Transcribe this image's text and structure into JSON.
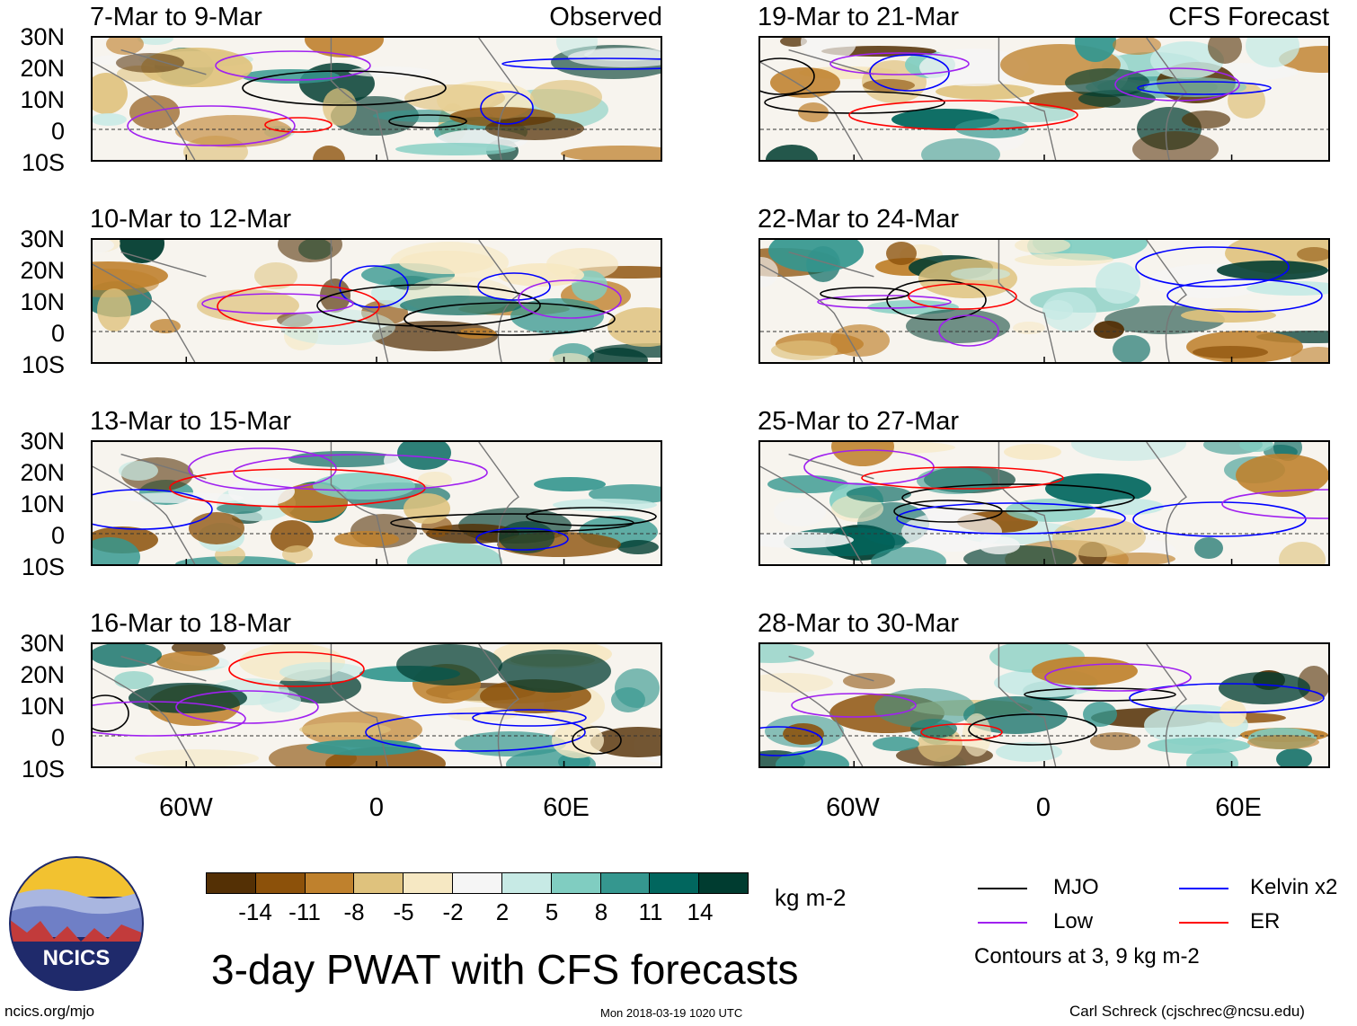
{
  "header": {
    "left_label": "Observed",
    "right_label": "CFS Forecast"
  },
  "panels": {
    "observed": [
      {
        "title": "7-Mar to 9-Mar"
      },
      {
        "title": "10-Mar to 12-Mar"
      },
      {
        "title": "13-Mar to 15-Mar"
      },
      {
        "title": "16-Mar to 18-Mar"
      }
    ],
    "forecast": [
      {
        "title": "19-Mar to 21-Mar"
      },
      {
        "title": "22-Mar to 24-Mar"
      },
      {
        "title": "25-Mar to 27-Mar"
      },
      {
        "title": "28-Mar to 30-Mar"
      }
    ]
  },
  "axes": {
    "lat_labels": [
      "30N",
      "20N",
      "10N",
      "0",
      "10S"
    ],
    "lon_labels": [
      "60W",
      "0",
      "60E"
    ]
  },
  "colorbar": {
    "ticks": [
      "-14",
      "-11",
      "-8",
      "-5",
      "-2",
      "2",
      "5",
      "8",
      "11",
      "14"
    ],
    "unit": "kg m-2",
    "colors": [
      "#543005",
      "#8c510a",
      "#bf812d",
      "#dfc27d",
      "#f6e8c3",
      "#f5f5f5",
      "#c7eae5",
      "#80cdc1",
      "#35978f",
      "#01665e",
      "#003c30"
    ]
  },
  "legend": {
    "items": [
      {
        "label": "MJO",
        "color": "#000000"
      },
      {
        "label": "Kelvin x2",
        "color": "#0000ff"
      },
      {
        "label": "Low",
        "color": "#a020f0"
      },
      {
        "label": "ER",
        "color": "#ff0000"
      }
    ],
    "note": "Contours at 3, 9 kg m-2"
  },
  "footer": {
    "title": "3-day PWAT with CFS forecasts",
    "logo_text": "NCICS",
    "url": "ncics.org/mjo",
    "timestamp": "Mon 2018-03-19 1020 UTC",
    "author": "Carl Schreck (cjschrec@ncsu.edu)"
  }
}
